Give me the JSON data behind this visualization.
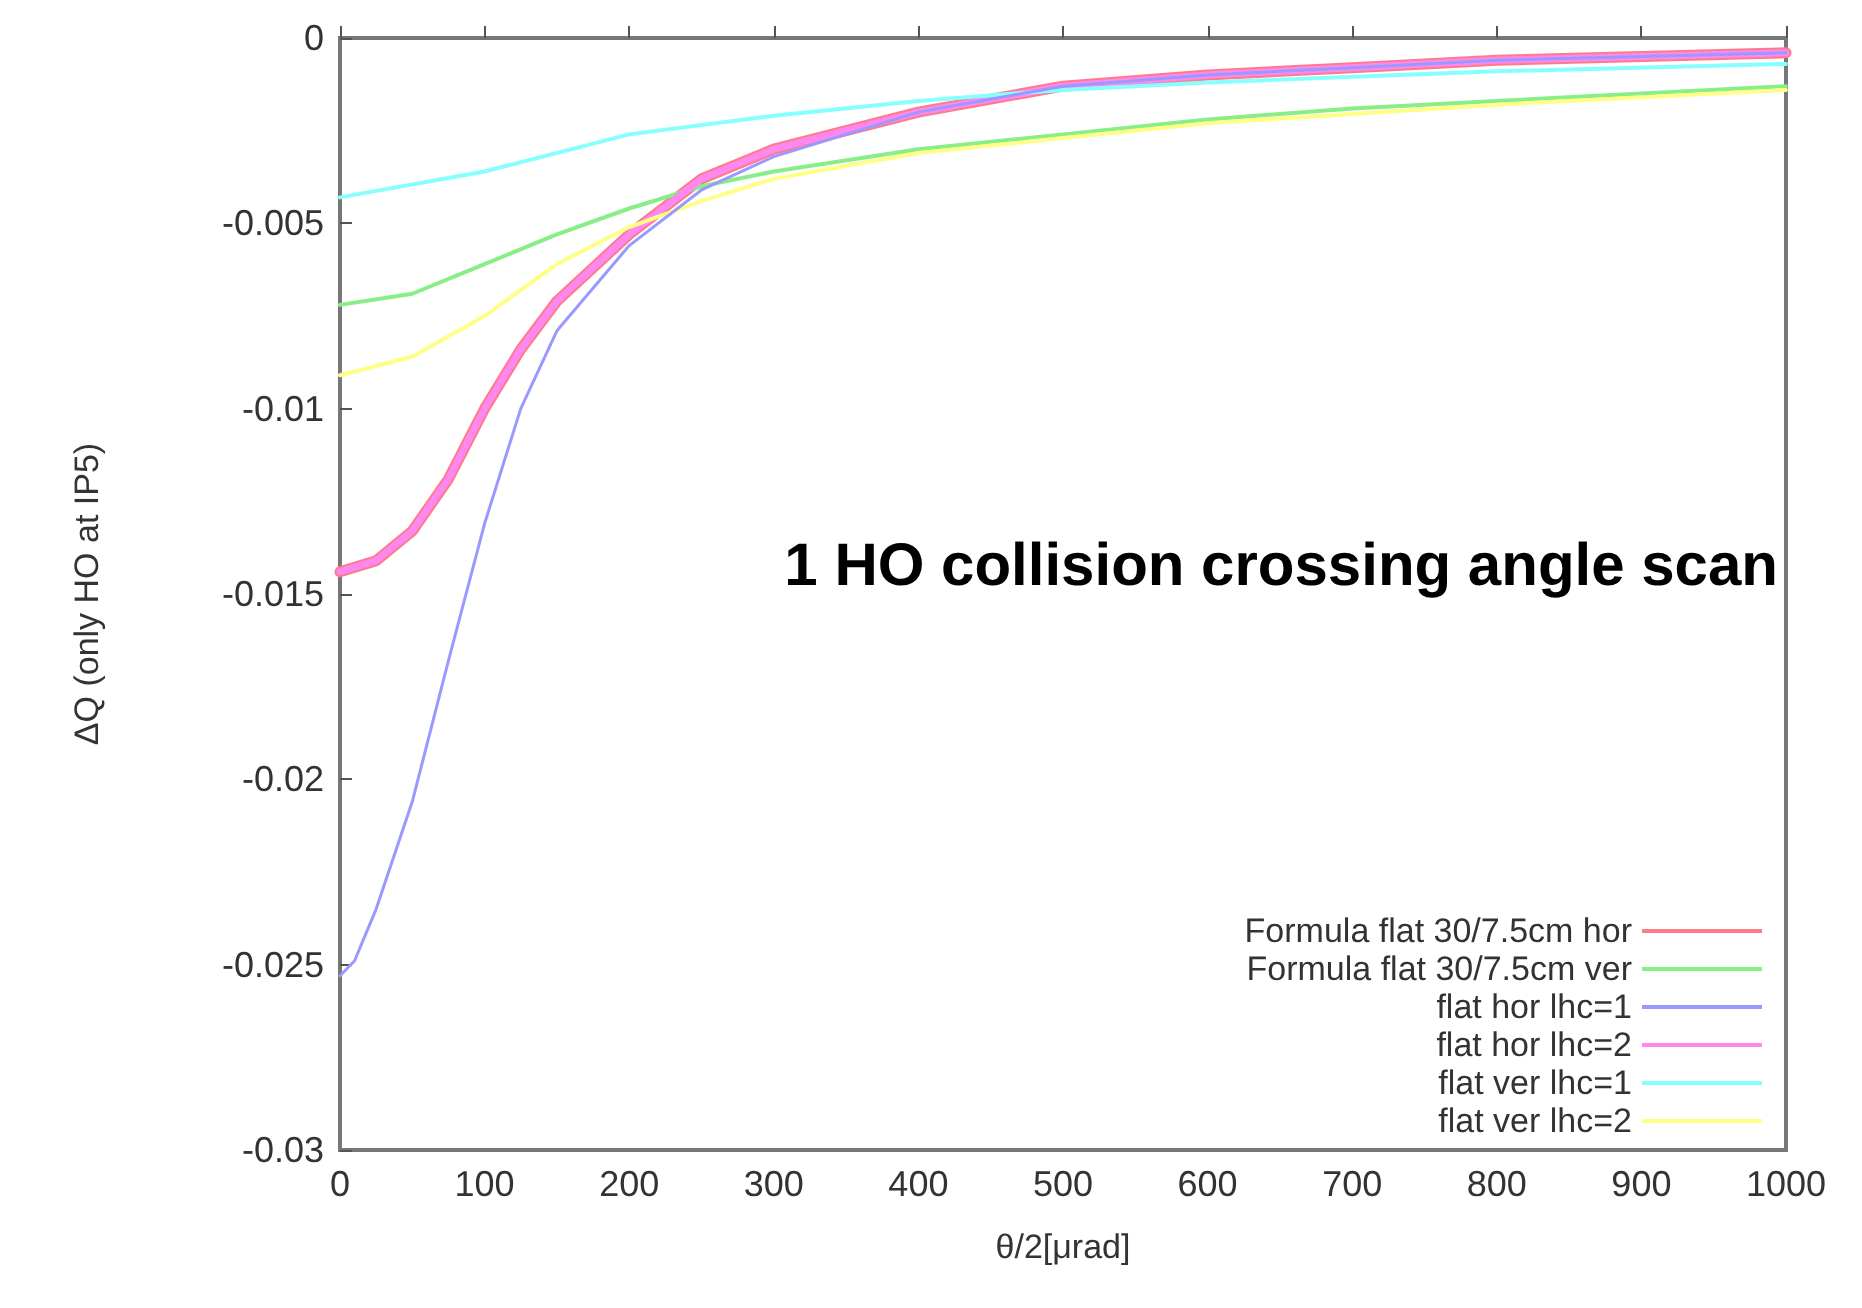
{
  "chart_data": {
    "type": "line",
    "xlabel": "θ/2[μrad]",
    "ylabel": "ΔQ (only HO at IP5)",
    "annotations": [
      "1 HO collision crossing angle scan"
    ],
    "xlim": [
      0,
      1000
    ],
    "xticks": [
      0,
      100,
      200,
      300,
      400,
      500,
      600,
      700,
      800,
      900,
      1000
    ],
    "ylim": [
      -0.03,
      0
    ],
    "yticks": [
      -0.03,
      -0.025,
      -0.02,
      -0.015,
      -0.01,
      -0.005,
      0
    ],
    "grid": false,
    "legend": "bottom right",
    "marker": "none",
    "line_style": "solid",
    "series": [
      {
        "name": "Formula flat 30/7.5cm hor",
        "color": "#ff7a8a",
        "x": [
          0,
          25,
          50,
          75,
          100,
          125,
          150,
          200,
          250,
          300,
          400,
          500,
          600,
          700,
          800,
          1000
        ],
        "values": [
          -0.0144,
          -0.0141,
          -0.0133,
          -0.0119,
          -0.01,
          -0.0084,
          -0.0071,
          -0.0053,
          -0.0038,
          -0.003,
          -0.002,
          -0.0013,
          -0.001,
          -0.0008,
          -0.0006,
          -0.0004
        ]
      },
      {
        "name": "Formula flat 30/7.5cm ver",
        "color": "#88ee88",
        "x": [
          0,
          50,
          100,
          150,
          200,
          250,
          300,
          400,
          500,
          600,
          700,
          800,
          900,
          1000
        ],
        "values": [
          -0.0072,
          -0.0069,
          -0.0061,
          -0.0053,
          -0.0046,
          -0.004,
          -0.0036,
          -0.003,
          -0.0026,
          -0.0022,
          -0.0019,
          -0.0017,
          -0.0015,
          -0.0013
        ]
      },
      {
        "name": "flat hor lhc=1",
        "color": "#9999ff",
        "x": [
          0,
          10,
          25,
          50,
          75,
          100,
          125,
          150,
          200,
          250,
          300,
          400,
          500,
          600,
          700,
          800,
          1000
        ],
        "values": [
          -0.0253,
          -0.0249,
          -0.0235,
          -0.0206,
          -0.0168,
          -0.0131,
          -0.01,
          -0.0079,
          -0.0056,
          -0.0041,
          -0.0032,
          -0.002,
          -0.0013,
          -0.001,
          -0.0008,
          -0.0006,
          -0.0004
        ]
      },
      {
        "name": "flat hor lhc=2",
        "color": "#ff88ee",
        "x": [
          0,
          25,
          50,
          75,
          100,
          125,
          150,
          200,
          250,
          300,
          400,
          500,
          600,
          700,
          800,
          1000
        ],
        "values": [
          -0.0144,
          -0.0141,
          -0.0133,
          -0.0119,
          -0.01,
          -0.0084,
          -0.0071,
          -0.0053,
          -0.0038,
          -0.003,
          -0.002,
          -0.0013,
          -0.001,
          -0.0008,
          -0.0006,
          -0.0004
        ]
      },
      {
        "name": "flat ver lhc=1",
        "color": "#88ffff",
        "x": [
          0,
          100,
          200,
          300,
          400,
          500,
          600,
          800,
          1000
        ],
        "values": [
          -0.0043,
          -0.0036,
          -0.0026,
          -0.0021,
          -0.0017,
          -0.0014,
          -0.0012,
          -0.0009,
          -0.0007
        ]
      },
      {
        "name": "flat ver lhc=2",
        "color": "#ffff88",
        "x": [
          0,
          50,
          100,
          150,
          200,
          250,
          300,
          400,
          500,
          600,
          800,
          1000
        ],
        "values": [
          -0.0091,
          -0.0086,
          -0.0075,
          -0.0061,
          -0.0051,
          -0.0044,
          -0.0038,
          -0.0031,
          -0.0027,
          -0.0023,
          -0.0018,
          -0.0014
        ]
      }
    ]
  }
}
